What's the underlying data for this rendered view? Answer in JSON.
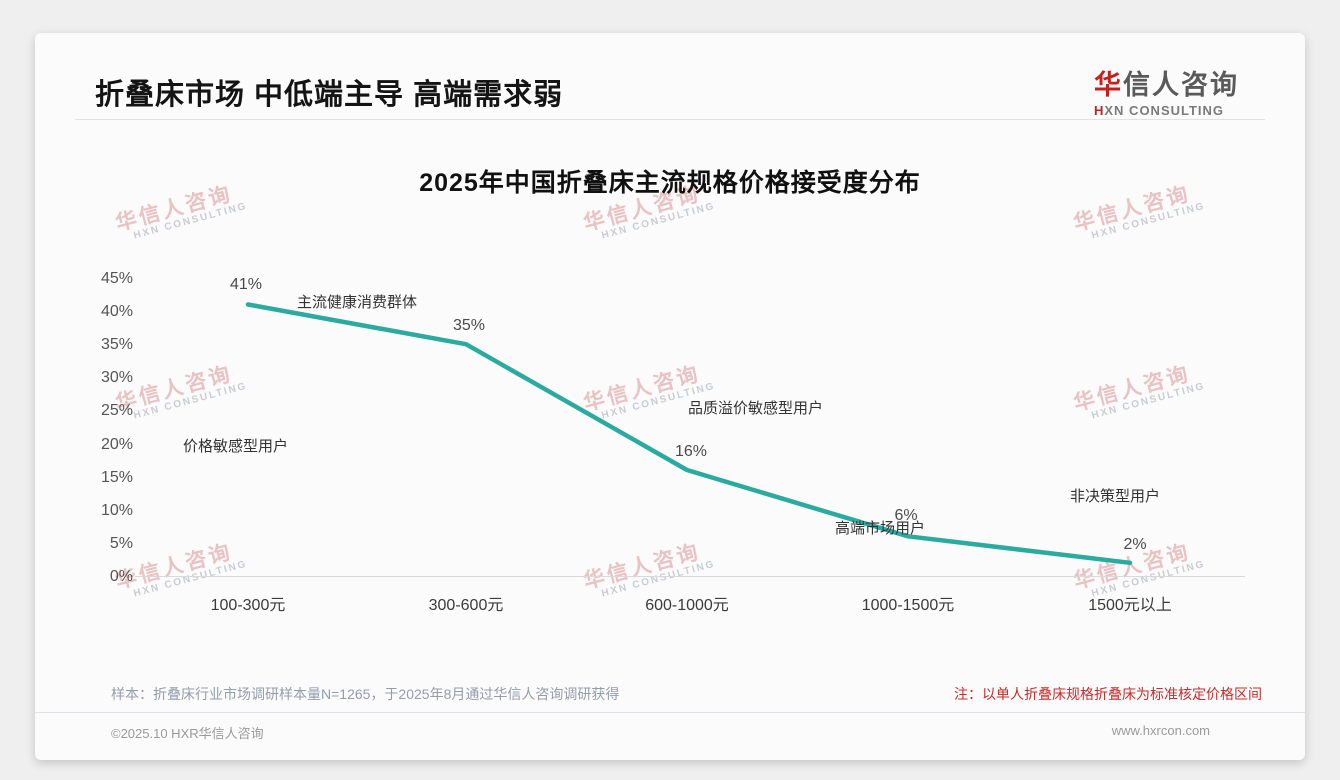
{
  "page": {
    "title": "折叠床市场 中低端主导 高端需求弱",
    "logo": {
      "cn_first": "华",
      "cn_rest": "信人咨询",
      "en_first": "H",
      "en_rest": "XN CONSULTING"
    },
    "watermark": {
      "line1": "华信人咨询",
      "line2": "HXN CONSULTING"
    },
    "sample_note": "样本：折叠床行业市场调研样本量N=1265，于2025年8月通过华信人咨询调研获得",
    "red_note": "注：以单人折叠床规格折叠床为标准核定价格区间",
    "footer_left": "©2025.10 HXR华信人咨询",
    "footer_right": "www.hxrcon.com"
  },
  "chart_data": {
    "type": "line",
    "title": "2025年中国折叠床主流规格价格接受度分布",
    "categories": [
      "100-300元",
      "300-600元",
      "600-1000元",
      "1000-1500元",
      "1500元以上"
    ],
    "values": [
      41,
      35,
      16,
      6,
      2
    ],
    "value_labels": [
      "41%",
      "35%",
      "16%",
      "6%",
      "2%"
    ],
    "y_ticks": [
      "45%",
      "40%",
      "35%",
      "30%",
      "25%",
      "20%",
      "15%",
      "10%",
      "5%",
      "0%"
    ],
    "ylim": [
      0,
      45
    ],
    "xlabel": "",
    "ylabel": "",
    "grid": false,
    "legend": "none",
    "line_color": "#2bab9f",
    "annotations": [
      "主流健康消费群体",
      "价格敏感型用户",
      "品质溢价敏感型用户",
      "高端市场用户",
      "非决策型用户"
    ]
  }
}
